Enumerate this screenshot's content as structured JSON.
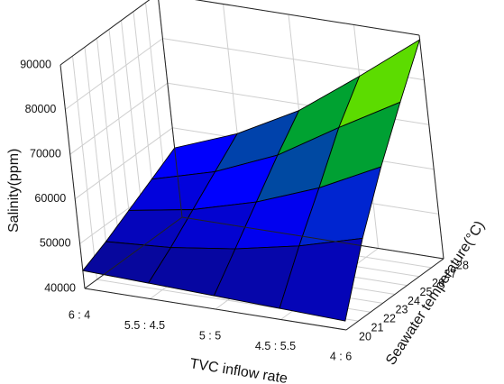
{
  "chart_data": {
    "type": "surface3d",
    "title": "",
    "xlabel": "TVC inflow rate",
    "ylabel": "Seawater temperature(°C)",
    "zlabel": "Salinity(ppm)",
    "x_ticks": [
      "6 : 4",
      "5.5 : 4.5",
      "5 : 5",
      "4.5 : 5.5",
      "4 : 6"
    ],
    "y_ticks": [
      "20",
      "21",
      "22",
      "23",
      "24",
      "25",
      "26",
      "27",
      "28"
    ],
    "z_ticks": [
      "40000",
      "50000",
      "60000",
      "70000",
      "80000",
      "90000"
    ],
    "zlim": [
      40000,
      90000
    ],
    "grid": true,
    "colormap": [
      "#0a0a6e",
      "#0000ff",
      "#00c800",
      "#ffff00"
    ],
    "surface_x": [
      "6 : 4",
      "5.5 : 4.5",
      "5 : 5",
      "4.5 : 5.5",
      "4 : 6"
    ],
    "surface_y": [
      20,
      22,
      24,
      26,
      28
    ],
    "surface_z": [
      [
        44000,
        43500,
        43000,
        42500,
        42000
      ],
      [
        46500,
        47500,
        49500,
        52500,
        56500
      ],
      [
        49500,
        52000,
        56000,
        61500,
        68500
      ],
      [
        52500,
        56500,
        62500,
        71000,
        79000
      ],
      [
        55500,
        61000,
        68500,
        78500,
        89000
      ]
    ]
  }
}
